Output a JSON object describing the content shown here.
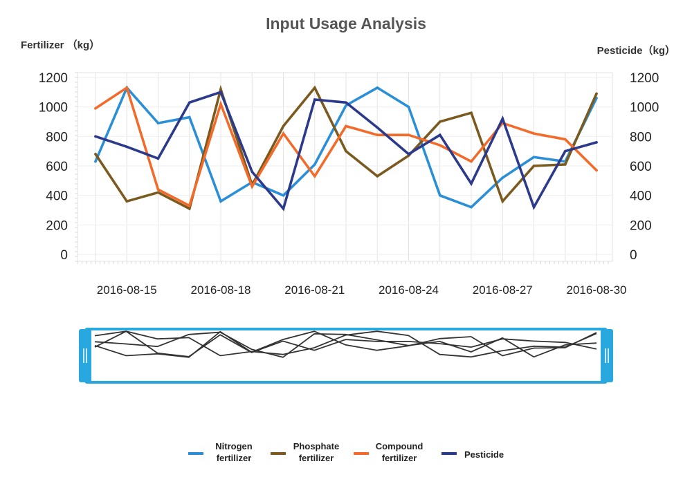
{
  "chart_data": {
    "type": "line",
    "title": "Input Usage Analysis",
    "ylabel_left": "Fertilizer （kg）",
    "ylabel_right": "Pesticide（kg）",
    "xlabel": "",
    "ylim": [
      0,
      1200
    ],
    "yticks": [
      0,
      200,
      400,
      600,
      800,
      1000,
      1200
    ],
    "x": [
      "2016-08-14",
      "2016-08-15",
      "2016-08-16",
      "2016-08-17",
      "2016-08-18",
      "2016-08-19",
      "2016-08-20",
      "2016-08-21",
      "2016-08-22",
      "2016-08-23",
      "2016-08-24",
      "2016-08-25",
      "2016-08-26",
      "2016-08-27",
      "2016-08-28",
      "2016-08-29",
      "2016-08-30"
    ],
    "xtick_labels": [
      "2016-08-15",
      "2016-08-18",
      "2016-08-21",
      "2016-08-24",
      "2016-08-27",
      "2016-08-30"
    ],
    "grid": true,
    "legend_position": "bottom",
    "series": [
      {
        "name": "Nitrogen fertilizer",
        "color": "#2a8fd6",
        "axis": "left",
        "values": [
          630,
          1130,
          890,
          930,
          360,
          490,
          400,
          610,
          1010,
          1130,
          1000,
          400,
          320,
          520,
          660,
          630,
          1060
        ]
      },
      {
        "name": "Phosphate fertilizer",
        "color": "#7a5a1e",
        "axis": "left",
        "values": [
          680,
          360,
          420,
          310,
          1120,
          470,
          870,
          1130,
          700,
          530,
          670,
          900,
          960,
          360,
          600,
          610,
          1090
        ]
      },
      {
        "name": "Compound fertilizer",
        "color": "#f26b2a",
        "axis": "left",
        "values": [
          990,
          1130,
          440,
          330,
          1020,
          460,
          820,
          530,
          870,
          810,
          810,
          740,
          630,
          890,
          820,
          780,
          570
        ]
      },
      {
        "name": "Pesticide",
        "color": "#2c3a8c",
        "axis": "right",
        "values": [
          800,
          730,
          650,
          1030,
          1100,
          560,
          310,
          1050,
          1030,
          860,
          680,
          810,
          480,
          920,
          320,
          700,
          760
        ]
      }
    ],
    "legend": [
      {
        "lines": [
          "Nitrogen",
          "fertilizer"
        ]
      },
      {
        "lines": [
          "Phosphate",
          "fertilizer"
        ]
      },
      {
        "lines": [
          "Compound",
          "fertilizer"
        ]
      },
      {
        "lines": [
          "Pesticide"
        ]
      }
    ],
    "data_zoom": {
      "range_percent": [
        0,
        100
      ],
      "handle_color": "#29a8e0"
    }
  }
}
